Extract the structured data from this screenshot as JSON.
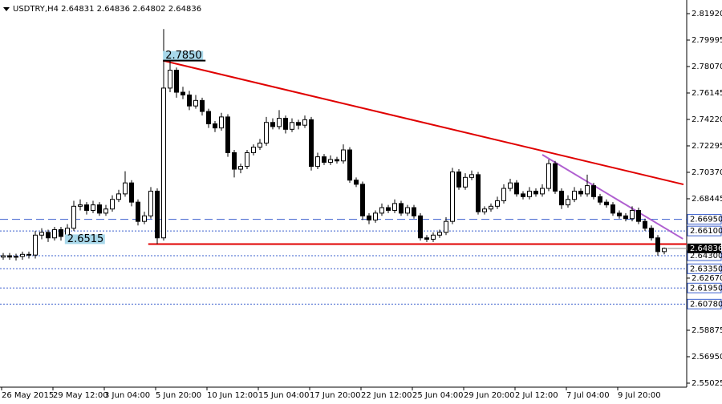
{
  "chart_data": {
    "type": "candlestick",
    "title": "USDTRY,H4  2.64831 2.64836 2.64802 2.64836",
    "open": [
      2.642,
      2.643,
      2.642,
      2.6425,
      2.644,
      2.6435,
      2.658,
      2.66,
      2.656,
      2.662,
      2.657,
      2.663,
      2.679,
      2.68,
      2.676,
      2.68,
      2.674,
      2.677,
      2.684,
      2.688,
      2.696,
      2.682,
      2.668,
      2.672,
      2.69,
      2.656,
      2.765,
      2.778,
      2.762,
      2.76,
      2.752,
      2.756,
      2.748,
      2.739,
      2.736,
      2.744,
      2.718,
      2.706,
      2.708,
      2.718,
      2.722,
      2.725,
      2.74,
      2.737,
      2.743,
      2.735,
      2.74,
      2.738,
      2.742,
      2.708,
      2.715,
      2.711,
      2.713,
      2.712,
      2.72,
      2.698,
      2.695,
      2.672,
      2.669,
      2.674,
      2.678,
      2.676,
      2.681,
      2.674,
      2.678,
      2.672,
      2.656,
      2.655,
      2.658,
      2.66,
      2.668,
      2.704,
      2.693,
      2.7,
      2.702,
      2.675,
      2.677,
      2.679,
      2.683,
      2.692,
      2.696,
      2.688,
      2.686,
      2.69,
      2.688,
      2.692,
      2.71,
      2.69,
      2.68,
      2.684,
      2.69,
      2.688,
      2.694,
      2.686,
      2.682,
      2.68,
      2.674,
      2.672,
      2.67,
      2.676,
      2.668,
      2.663,
      2.656,
      2.646
    ],
    "high": [
      2.645,
      2.645,
      2.6445,
      2.646,
      2.646,
      2.661,
      2.663,
      2.662,
      2.664,
      2.664,
      2.666,
      2.683,
      2.684,
      2.682,
      2.683,
      2.682,
      2.68,
      2.687,
      2.691,
      2.7045,
      2.698,
      2.684,
      2.675,
      2.693,
      2.692,
      2.808,
      2.786,
      2.78,
      2.766,
      2.763,
      2.76,
      2.758,
      2.75,
      2.741,
      2.747,
      2.746,
      2.72,
      2.71,
      2.72,
      2.724,
      2.728,
      2.744,
      2.743,
      2.749,
      2.745,
      2.743,
      2.742,
      2.745,
      2.744,
      2.718,
      2.717,
      2.716,
      2.715,
      2.724,
      2.722,
      2.7,
      2.697,
      2.674,
      2.676,
      2.681,
      2.68,
      2.684,
      2.683,
      2.68,
      2.68,
      2.674,
      2.658,
      2.66,
      2.662,
      2.671,
      2.707,
      2.706,
      2.703,
      2.705,
      2.704,
      2.679,
      2.681,
      2.686,
      2.695,
      2.699,
      2.698,
      2.69,
      2.693,
      2.692,
      2.695,
      2.713,
      2.712,
      2.692,
      2.687,
      2.693,
      2.692,
      2.702,
      2.696,
      2.688,
      2.684,
      2.682,
      2.676,
      2.674,
      2.679,
      2.678,
      2.67,
      2.665,
      2.658,
      2.649
    ],
    "low": [
      2.64,
      2.64,
      2.6395,
      2.64,
      2.641,
      2.641,
      2.655,
      2.653,
      2.654,
      2.654,
      2.655,
      2.661,
      2.676,
      2.673,
      2.674,
      2.672,
      2.672,
      2.675,
      2.682,
      2.686,
      2.679,
      2.665,
      2.666,
      2.67,
      2.6515,
      2.654,
      2.762,
      2.758,
      2.757,
      2.749,
      2.75,
      2.745,
      2.736,
      2.733,
      2.734,
      2.715,
      2.7,
      2.703,
      2.706,
      2.716,
      2.72,
      2.723,
      2.735,
      2.735,
      2.732,
      2.733,
      2.735,
      2.736,
      2.705,
      2.706,
      2.709,
      2.709,
      2.71,
      2.71,
      2.696,
      2.693,
      2.669,
      2.666,
      2.667,
      2.672,
      2.674,
      2.674,
      2.672,
      2.672,
      2.67,
      2.654,
      2.653,
      2.653,
      2.656,
      2.658,
      2.666,
      2.691,
      2.691,
      2.698,
      2.673,
      2.673,
      2.675,
      2.677,
      2.681,
      2.69,
      2.686,
      2.684,
      2.684,
      2.686,
      2.686,
      2.69,
      2.688,
      2.677,
      2.678,
      2.682,
      2.686,
      2.686,
      2.684,
      2.68,
      2.678,
      2.672,
      2.67,
      2.668,
      2.668,
      2.666,
      2.661,
      2.654,
      2.643,
      2.644
    ],
    "close": [
      2.643,
      2.642,
      2.6425,
      2.644,
      2.6435,
      2.658,
      2.66,
      2.656,
      2.662,
      2.657,
      2.663,
      2.679,
      2.68,
      2.676,
      2.68,
      2.674,
      2.677,
      2.684,
      2.688,
      2.696,
      2.682,
      2.668,
      2.672,
      2.69,
      2.656,
      2.765,
      2.778,
      2.762,
      2.76,
      2.752,
      2.756,
      2.748,
      2.739,
      2.736,
      2.744,
      2.718,
      2.706,
      2.708,
      2.718,
      2.722,
      2.725,
      2.74,
      2.737,
      2.743,
      2.735,
      2.74,
      2.738,
      2.742,
      2.708,
      2.715,
      2.711,
      2.713,
      2.712,
      2.72,
      2.698,
      2.695,
      2.672,
      2.669,
      2.674,
      2.678,
      2.676,
      2.681,
      2.674,
      2.678,
      2.672,
      2.656,
      2.655,
      2.658,
      2.66,
      2.668,
      2.704,
      2.693,
      2.7,
      2.702,
      2.675,
      2.677,
      2.679,
      2.683,
      2.692,
      2.696,
      2.688,
      2.686,
      2.69,
      2.688,
      2.692,
      2.71,
      2.69,
      2.68,
      2.684,
      2.69,
      2.688,
      2.694,
      2.686,
      2.682,
      2.68,
      2.674,
      2.672,
      2.67,
      2.676,
      2.668,
      2.663,
      2.656,
      2.646,
      2.64836
    ],
    "xlim": [
      0,
      107
    ],
    "xticks": [
      {
        "value": 0,
        "label": "26 May 2015"
      },
      {
        "value": 8,
        "label": "29 May 12:00"
      },
      {
        "value": 16,
        "label": "3 Jun 04:00"
      },
      {
        "value": 24,
        "label": "5 Jun 20:00"
      },
      {
        "value": 32,
        "label": "10 Jun 12:00"
      },
      {
        "value": 40,
        "label": "15 Jun 04:00"
      },
      {
        "value": 48,
        "label": "17 Jun 20:00"
      },
      {
        "value": 56,
        "label": "22 Jun 12:00"
      },
      {
        "value": 64,
        "label": "25 Jun 04:00"
      },
      {
        "value": 72,
        "label": "29 Jun 20:00"
      },
      {
        "value": 80,
        "label": "2 Jul 12:00"
      },
      {
        "value": 88,
        "label": "7 Jul 04:00"
      },
      {
        "value": 96,
        "label": "9 Jul 20:00"
      }
    ],
    "ylim": [
      2.55025,
      2.8192
    ],
    "yticks": [
      {
        "value": 2.8192,
        "label": "2.81920"
      },
      2.79995,
      {
        "value": 2.7807,
        "label": "2.78070"
      },
      2.76145,
      {
        "value": 2.7422,
        "label": "2.74220"
      },
      2.72295,
      {
        "value": 2.7037,
        "label": "2.70370"
      },
      2.68445,
      {
        "value": 2.6267,
        "label": "2.62670"
      },
      2.58875,
      {
        "value": 2.5695,
        "label": "2.56950"
      },
      2.55025
    ],
    "levels": [
      {
        "value": 2.6695,
        "label": "2.66950",
        "style": "dashed",
        "color": "#3a5fcd"
      },
      {
        "value": 2.661,
        "label": "2.66100",
        "style": "dotted",
        "color": "#3a5fcd"
      },
      {
        "value": 2.643,
        "label": "2.64300",
        "style": "dotted",
        "color": "#3a5fcd"
      },
      {
        "value": 2.6335,
        "label": "2.63350",
        "style": "dotted",
        "color": "#3a5fcd"
      },
      {
        "value": 2.6195,
        "label": "2.61950",
        "style": "dotted",
        "color": "#3a5fcd"
      },
      {
        "value": 2.6078,
        "label": "2.60780",
        "style": "dotted",
        "color": "#3a5fcd"
      }
    ],
    "current_price": {
      "value": 2.64836,
      "label": "2.64836"
    },
    "support": {
      "value": 2.6515,
      "from": 23.1,
      "color": "#e00000"
    },
    "trendlines": [
      {
        "color": "#e00000",
        "points": [
          [
            25.4,
            2.785
          ],
          [
            106.5,
            2.6949
          ]
        ]
      },
      {
        "color": "#b060d0",
        "points": [
          [
            84.5,
            2.7165
          ],
          [
            106.4,
            2.6553
          ]
        ]
      }
    ],
    "annotations": [
      {
        "text": "2.7850",
        "x": 25.4,
        "y": 2.785
      },
      {
        "text": "2.6515",
        "x": 16.6,
        "y": 2.6515
      }
    ]
  }
}
